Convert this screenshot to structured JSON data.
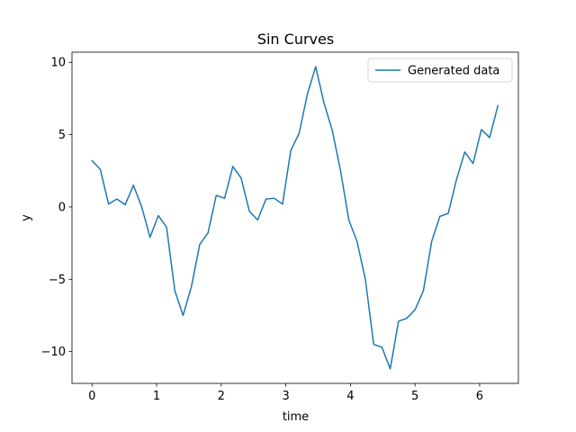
{
  "chart_data": {
    "type": "line",
    "title": "Sin Curves",
    "xlabel": "time",
    "ylabel": "y",
    "xlim": [
      -0.31,
      6.6
    ],
    "ylim": [
      -12.2,
      10.7
    ],
    "xticks": [
      0,
      1,
      2,
      3,
      4,
      5,
      6
    ],
    "yticks": [
      -10,
      -5,
      0,
      5,
      10
    ],
    "ytick_labels": [
      "−10",
      "−5",
      "0",
      "5",
      "10"
    ],
    "grid": false,
    "legend_position": "top-right",
    "series": [
      {
        "name": "Generated data",
        "color": "#1f77b4",
        "x": [
          0.0,
          0.128,
          0.256,
          0.385,
          0.513,
          0.641,
          0.769,
          0.898,
          1.026,
          1.154,
          1.282,
          1.41,
          1.539,
          1.667,
          1.795,
          1.923,
          2.052,
          2.18,
          2.308,
          2.436,
          2.564,
          2.693,
          2.821,
          2.949,
          3.077,
          3.206,
          3.334,
          3.462,
          3.59,
          3.718,
          3.847,
          3.975,
          4.103,
          4.231,
          4.36,
          4.488,
          4.616,
          4.744,
          4.873,
          5.001,
          5.129,
          5.257,
          5.385,
          5.514,
          5.642,
          5.77,
          5.898,
          6.027,
          6.155,
          6.283
        ],
        "y": [
          3.2,
          2.6,
          0.2,
          0.55,
          0.15,
          1.5,
          0.0,
          -2.1,
          -0.6,
          -1.4,
          -5.8,
          -7.5,
          -5.5,
          -2.6,
          -1.8,
          0.8,
          0.6,
          2.8,
          2.0,
          -0.3,
          -0.9,
          0.55,
          0.6,
          0.2,
          3.9,
          5.1,
          7.8,
          9.7,
          7.2,
          5.3,
          2.5,
          -0.9,
          -2.4,
          -5.0,
          -9.5,
          -9.7,
          -11.2,
          -7.9,
          -7.7,
          -7.1,
          -5.8,
          -2.4,
          -0.65,
          -0.45,
          1.9,
          3.8,
          3.0,
          5.35,
          4.8,
          7.0
        ]
      }
    ]
  }
}
